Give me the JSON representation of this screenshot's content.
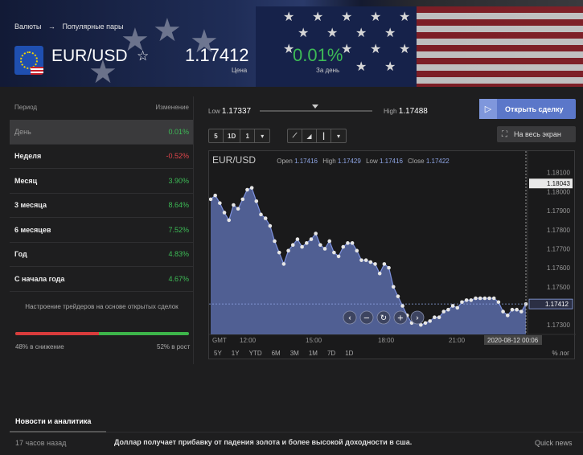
{
  "breadcrumb": {
    "root": "Валюты",
    "arrow": "→",
    "section": "Популярные пары"
  },
  "instrument": {
    "pair": "EUR/USD",
    "fav_glyph": "☆",
    "price": "1.17412",
    "price_label": "Цена",
    "change": "0.01%",
    "change_label": "За день"
  },
  "periods": {
    "header_period": "Период",
    "header_change": "Изменение",
    "rows": [
      {
        "label": "День",
        "value": "0.01%",
        "dir": "pos"
      },
      {
        "label": "Неделя",
        "value": "-0.52%",
        "dir": "neg"
      },
      {
        "label": "Месяц",
        "value": "3.90%",
        "dir": "pos"
      },
      {
        "label": "3 месяца",
        "value": "8.64%",
        "dir": "pos"
      },
      {
        "label": "6 месяцев",
        "value": "7.52%",
        "dir": "pos"
      },
      {
        "label": "Год",
        "value": "4.83%",
        "dir": "pos"
      },
      {
        "label": "С начала года",
        "value": "4.67%",
        "dir": "pos"
      }
    ]
  },
  "sentiment": {
    "caption": "Настроение трейдеров на основе открытых сделок",
    "down_pct": 48,
    "down_label": "48% в снижение",
    "up_label": "52% в рост",
    "colors": {
      "down": "#d93c3c",
      "up": "#3db54a"
    }
  },
  "range": {
    "low_label": "Low",
    "low": "1.17337",
    "high_label": "High",
    "high": "1.17488"
  },
  "actions": {
    "open_trade": "Открыть сделку",
    "fullscreen": "На весь экран"
  },
  "toolbar": {
    "interval": [
      "5",
      "1D",
      "1"
    ]
  },
  "chart_data": {
    "type": "line",
    "symbol": "EUR/USD",
    "ohlc": {
      "open_label": "Open",
      "open": "1.17416",
      "high_label": "High",
      "high": "1.17429",
      "low_label": "Low",
      "low": "1.17416",
      "close_label": "Close",
      "close": "1.17422"
    },
    "x_ticks": [
      "GMT",
      "12:00",
      "15:00",
      "18:00",
      "21:00"
    ],
    "x_cursor_label": "2020-08-12 00:06",
    "y_ticks": [
      "1.18100",
      "1.18000",
      "1.17900",
      "1.17800",
      "1.17700",
      "1.17600",
      "1.17500",
      "1.17300"
    ],
    "y_hover_label": "1.18043",
    "y_last_label": "1.17412",
    "ylim": [
      1.1725,
      1.1812
    ],
    "values": [
      1.1796,
      1.1798,
      1.1794,
      1.1789,
      1.1785,
      1.1793,
      1.1791,
      1.1796,
      1.1801,
      1.1802,
      1.1795,
      1.1788,
      1.1786,
      1.1782,
      1.1774,
      1.1768,
      1.1762,
      1.1769,
      1.1772,
      1.1775,
      1.1771,
      1.1773,
      1.1775,
      1.1778,
      1.1772,
      1.177,
      1.1774,
      1.1768,
      1.1766,
      1.1771,
      1.1773,
      1.1773,
      1.1769,
      1.1764,
      1.1764,
      1.1763,
      1.1762,
      1.1757,
      1.1762,
      1.176,
      1.175,
      1.1745,
      1.174,
      1.1735,
      1.1731,
      1.1733,
      1.173,
      1.1731,
      1.1732,
      1.1734,
      1.1734,
      1.1737,
      1.1738,
      1.174,
      1.1739,
      1.1742,
      1.1743,
      1.1743,
      1.1744,
      1.1744,
      1.1744,
      1.1744,
      1.1744,
      1.1742,
      1.1737,
      1.1735,
      1.1738,
      1.1738,
      1.1737,
      1.1741
    ],
    "line_color": "#7f93e0",
    "fill_color": "#5a6ca8",
    "grid": false
  },
  "chart_controls": {
    "ranges": [
      "5Y",
      "1Y",
      "YTD",
      "6M",
      "3M",
      "1M",
      "7D",
      "1D"
    ],
    "scale": "% лог"
  },
  "news": {
    "tab": "Новости и аналитика",
    "time": "17 часов назад",
    "headline": "Доллар получает прибавку от падения золота и более высокой доходности в сша.",
    "source": "Quick news"
  }
}
